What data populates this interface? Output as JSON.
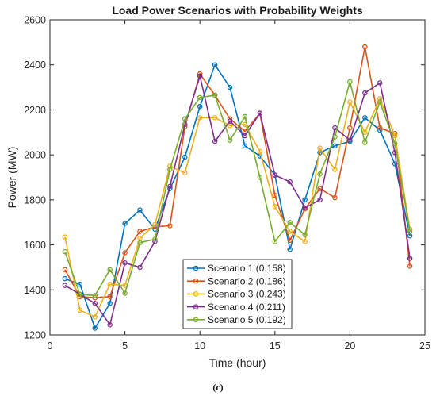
{
  "chart_data": {
    "type": "line",
    "title": "Load Power Scenarios with Probability Weights",
    "xlabel": "Time (hour)",
    "ylabel": "Power (MW)",
    "xlim": [
      0,
      25
    ],
    "ylim": [
      1200,
      2600
    ],
    "xticks": [
      0,
      5,
      10,
      15,
      20,
      25
    ],
    "yticks": [
      1200,
      1400,
      1600,
      1800,
      2000,
      2200,
      2400,
      2600
    ],
    "grid": true,
    "legend_position": "bottom-center",
    "x": [
      1,
      2,
      3,
      4,
      5,
      6,
      7,
      8,
      9,
      10,
      11,
      12,
      13,
      14,
      15,
      16,
      17,
      18,
      19,
      20,
      21,
      22,
      23,
      24
    ],
    "series": [
      {
        "name": "Scenario 1 (0.158)",
        "color": "#0072bd",
        "values": [
          1450,
          1425,
          1230,
          1340,
          1695,
          1755,
          1670,
          1850,
          1990,
          2215,
          2400,
          2300,
          2040,
          1995,
          1910,
          1580,
          1800,
          2010,
          2040,
          2060,
          2165,
          2110,
          1960,
          1640
        ]
      },
      {
        "name": "Scenario 2 (0.186)",
        "color": "#d95319",
        "values": [
          1490,
          1370,
          1365,
          1370,
          1565,
          1660,
          1680,
          1685,
          2125,
          2360,
          2265,
          2160,
          2105,
          2185,
          1820,
          1620,
          1760,
          1850,
          1810,
          2120,
          2480,
          2120,
          2095,
          1505
        ]
      },
      {
        "name": "Scenario 3 (0.243)",
        "color": "#edb120",
        "values": [
          1635,
          1310,
          1280,
          1425,
          1420,
          1630,
          1690,
          1950,
          1920,
          2165,
          2165,
          2130,
          2135,
          2015,
          1770,
          1660,
          1615,
          2030,
          1935,
          2235,
          2100,
          2250,
          2085,
          1670
        ]
      },
      {
        "name": "Scenario 4 (0.211)",
        "color": "#7e2f8e",
        "values": [
          1420,
          1380,
          1340,
          1245,
          1520,
          1500,
          1615,
          1860,
          2135,
          2350,
          2060,
          2150,
          2085,
          2185,
          1910,
          1880,
          1765,
          1800,
          2120,
          2065,
          2275,
          2320,
          2010,
          1540
        ]
      },
      {
        "name": "Scenario 5 (0.192)",
        "color": "#77ac30",
        "values": [
          1570,
          1380,
          1375,
          1490,
          1385,
          1610,
          1625,
          1935,
          2160,
          2255,
          2265,
          2065,
          2170,
          1900,
          1615,
          1700,
          1645,
          1915,
          2080,
          2325,
          2055,
          2235,
          2050,
          1660
        ]
      }
    ],
    "annotations": [
      "(c)"
    ]
  }
}
